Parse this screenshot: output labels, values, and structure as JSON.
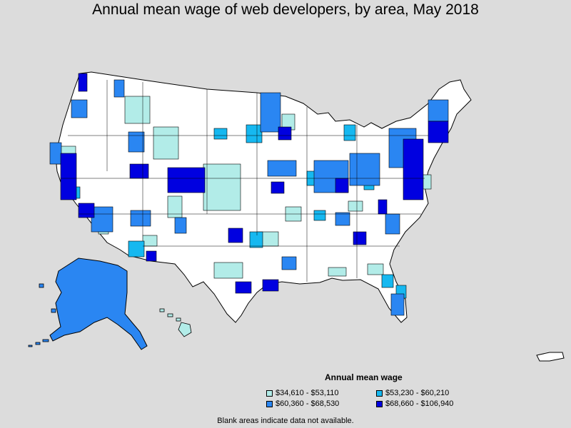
{
  "title": "Annual mean wage of web developers, by area, May 2018",
  "legend": {
    "title": "Annual mean wage",
    "items": [
      {
        "label": "$34,610 - $53,110",
        "color": "#b2ece8"
      },
      {
        "label": "$53,230 - $60,210",
        "color": "#16b8f0"
      },
      {
        "label": "$60,360 - $68,530",
        "color": "#2a86f2"
      },
      {
        "label": "$68,660 - $106,940",
        "color": "#0000e0"
      }
    ]
  },
  "footnote": "Blank areas indicate data not available.",
  "colors": {
    "background": "#dcdcdc",
    "no_data": "#ffffff",
    "border": "#000000"
  }
}
